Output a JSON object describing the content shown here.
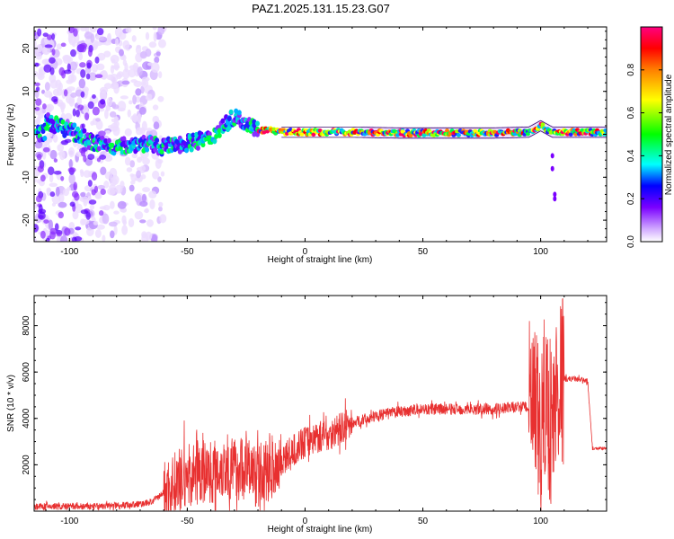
{
  "title": "PAZ1.2025.131.15.23.G07",
  "chart_data": [
    {
      "type": "heatmap",
      "xlabel": "Height of straight line (km)",
      "ylabel": "Frequency (Hz)",
      "xlim": [
        -115,
        128
      ],
      "ylim": [
        -25,
        25
      ],
      "xticks": [
        -100,
        -50,
        0,
        50,
        100
      ],
      "yticks": [
        -20,
        -10,
        0,
        10,
        20
      ],
      "colorbar": {
        "label": "Normalized spectral amplitude",
        "range": [
          0,
          1
        ],
        "ticks": [
          "0.0",
          "0.2",
          "0.4",
          "0.6",
          "0.8"
        ],
        "tick_values": [
          0.0,
          0.2,
          0.4,
          0.6,
          0.8
        ],
        "colors": [
          "#ffffff",
          "#c9a0ff",
          "#7a00ff",
          "#0000ff",
          "#00ffff",
          "#00ff00",
          "#ffff00",
          "#ff8000",
          "#ff0000",
          "#ff0080"
        ]
      },
      "ridge": {
        "description_points_x": [
          -110,
          -100,
          -90,
          -80,
          -70,
          -60,
          -50,
          -40,
          -35,
          -30,
          -25,
          -20,
          -15,
          -10,
          0,
          10,
          20,
          40,
          60,
          80,
          95,
          100,
          105,
          110,
          128
        ],
        "description_points_y": [
          3,
          1,
          -2,
          -3,
          -2,
          -3,
          -2,
          -1,
          2,
          4,
          3,
          1,
          1,
          0.5,
          0.5,
          0.5,
          0.5,
          0.3,
          0.3,
          0.3,
          0.5,
          2,
          0.5,
          0.5,
          0.5
        ]
      }
    },
    {
      "type": "line",
      "xlabel": "Height of straight line (km)",
      "ylabel": "SNR (10 * v/v)",
      "xlim": [
        -115,
        128
      ],
      "ylim": [
        0,
        9300
      ],
      "xticks": [
        -100,
        -50,
        0,
        50,
        100
      ],
      "yticks": [
        2000,
        4000,
        6000,
        8000
      ],
      "color": "#e83030",
      "series": [
        {
          "x": [
            -115,
            -100,
            -90,
            -80,
            -70,
            -65,
            -60,
            -55,
            -50,
            -45,
            -40,
            -35,
            -30,
            -25,
            -20,
            -15,
            -10,
            -5,
            0,
            5,
            10,
            20,
            30,
            40,
            50,
            60,
            70,
            80,
            90,
            95,
            98,
            100,
            102,
            105,
            107,
            110,
            115,
            120,
            122,
            125,
            128
          ],
          "y": [
            200,
            200,
            200,
            250,
            300,
            400,
            800,
            1200,
            1500,
            1700,
            1700,
            1900,
            1800,
            1900,
            1500,
            1800,
            2200,
            2600,
            3000,
            3200,
            3300,
            3800,
            4100,
            4300,
            4400,
            4400,
            4400,
            4400,
            4500,
            4500,
            4000,
            3000,
            5000,
            3500,
            5500,
            5700,
            5700,
            5600,
            2700,
            2700,
            2700
          ]
        }
      ]
    }
  ]
}
